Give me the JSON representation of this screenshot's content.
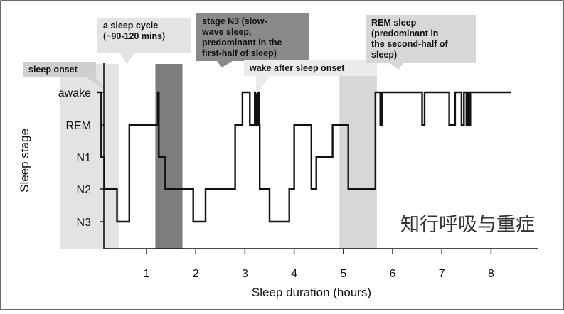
{
  "chart_data": {
    "type": "line",
    "xlabel": "Sleep duration (hours)",
    "ylabel": "Sleep stage",
    "xlim": [
      -0.8,
      9
    ],
    "x_ticks": [
      "1",
      "2",
      "3",
      "4",
      "5",
      "6",
      "7",
      "8"
    ],
    "stages": [
      "awake",
      "REM",
      "N1",
      "N2",
      "N3"
    ],
    "hypnogram": {
      "name": "",
      "x": [
        0,
        0.08,
        0.08,
        0.14,
        0.14,
        0.4,
        0.4,
        0.65,
        0.65,
        1.23,
        1.23,
        1.25,
        1.25,
        1.38,
        1.38,
        1.45,
        1.45,
        1.55,
        1.55,
        1.95,
        1.95,
        2.2,
        2.2,
        2.8,
        2.8,
        2.95,
        2.95,
        3.1,
        3.1,
        3.2,
        3.2,
        3.22,
        3.22,
        3.25,
        3.25,
        3.28,
        3.28,
        3.3,
        3.3,
        3.5,
        3.5,
        3.9,
        3.9,
        4.0,
        4.0,
        4.35,
        4.35,
        4.45,
        4.45,
        4.78,
        4.78,
        5.1,
        5.1,
        5.65,
        5.65,
        5.75,
        5.75,
        5.78,
        5.78,
        6.6,
        6.6,
        6.65,
        6.65,
        7.15,
        7.15,
        7.27,
        7.27,
        7.4,
        7.4,
        7.45,
        7.45,
        7.5,
        7.5,
        7.52,
        7.52,
        7.55,
        7.55,
        7.58,
        7.58,
        7.62,
        7.62,
        8.4
      ],
      "y": [
        "awake",
        "awake",
        "N1",
        "N1",
        "N2",
        "N2",
        "N3",
        "N3",
        "REM",
        "REM",
        "awake",
        "awake",
        "N1",
        "N1",
        "N2",
        "N2",
        "N2",
        "N2",
        "N2",
        "N2",
        "N3",
        "N3",
        "N2",
        "N2",
        "REM",
        "REM",
        "awake",
        "awake",
        "REM",
        "REM",
        "awake",
        "awake",
        "REM",
        "REM",
        "awake",
        "awake",
        "REM",
        "REM",
        "N2",
        "N2",
        "N3",
        "N3",
        "N2",
        "N2",
        "REM",
        "REM",
        "N2",
        "N2",
        "N1",
        "N1",
        "REM",
        "REM",
        "N2",
        "N2",
        "awake",
        "awake",
        "REM",
        "REM",
        "awake",
        "awake",
        "REM",
        "REM",
        "awake",
        "awake",
        "REM",
        "REM",
        "awake",
        "awake",
        "REM",
        "REM",
        "awake",
        "awake",
        "REM",
        "REM",
        "awake",
        "awake",
        "REM",
        "REM",
        "awake",
        "awake",
        "awake",
        "awake"
      ]
    },
    "highlight_bands": [
      {
        "name": "sleep-cycle-band",
        "x": [
          -0.75,
          0.45
        ],
        "color": "#e3e3e3"
      },
      {
        "name": "stage-n3-band",
        "x": [
          1.18,
          1.73
        ],
        "color": "#7d7d7d"
      },
      {
        "name": "rem-sleep-band",
        "x": [
          4.92,
          5.68
        ],
        "color": "#d7d7d7"
      }
    ],
    "annotations": [
      {
        "name": "sleep-onset",
        "lines": [
          "sleep onset"
        ],
        "color": "#cfcfcf"
      },
      {
        "name": "sleep-cycle",
        "lines": [
          "a sleep cycle",
          "(~90-120 mins)"
        ],
        "color": "#e3e3e3"
      },
      {
        "name": "stage-n3",
        "lines": [
          "stage N3 (slow-",
          "wave sleep,",
          "predominant in the",
          "first-half of sleep)"
        ],
        "color": "#8a8a8a"
      },
      {
        "name": "waso",
        "lines": [
          "wake after sleep onset"
        ],
        "color": "#ebebeb"
      },
      {
        "name": "rem-sleep",
        "lines": [
          "REM sleep",
          "(predominant in",
          "the second-half of",
          "sleep)"
        ],
        "color": "#d7d7d7"
      }
    ],
    "colors": {
      "line": "#111111",
      "axis": "#111111",
      "frame": "#000000"
    }
  },
  "watermark": "知行呼吸与重症"
}
